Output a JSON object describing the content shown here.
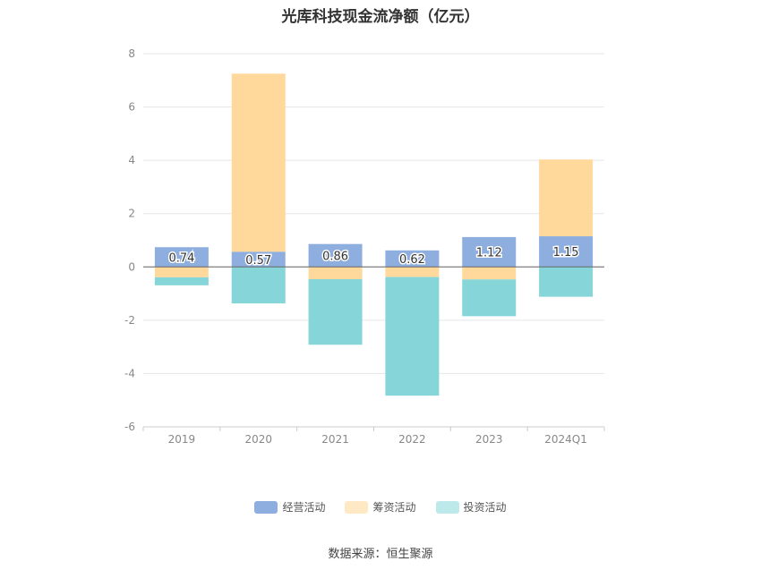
{
  "chart_data": {
    "type": "bar",
    "stacked": true,
    "title": "光库科技现金流净额（亿元）",
    "categories": [
      "2019",
      "2020",
      "2021",
      "2022",
      "2023",
      "2024Q1"
    ],
    "ylim": [
      -6,
      8
    ],
    "yticks": [
      -6,
      -4,
      -2,
      0,
      2,
      4,
      6,
      8
    ],
    "grid": true,
    "legend_position": "bottom",
    "series": [
      {
        "name": "经营活动",
        "color": "#8eaedf",
        "values": [
          0.74,
          0.57,
          0.86,
          0.62,
          1.12,
          1.15
        ],
        "labels": [
          "0.74",
          "0.57",
          "0.86",
          "0.62",
          "1.12",
          "1.15"
        ]
      },
      {
        "name": "筹资活动",
        "color": "#ffd99b",
        "values": [
          -0.39,
          6.68,
          -0.46,
          -0.38,
          -0.47,
          2.88
        ]
      },
      {
        "name": "投资活动",
        "color": "#86d6d9",
        "values": [
          -0.3,
          -1.37,
          -2.46,
          -4.45,
          -1.38,
          -1.12
        ]
      }
    ]
  },
  "source": "数据来源：恒生聚源"
}
